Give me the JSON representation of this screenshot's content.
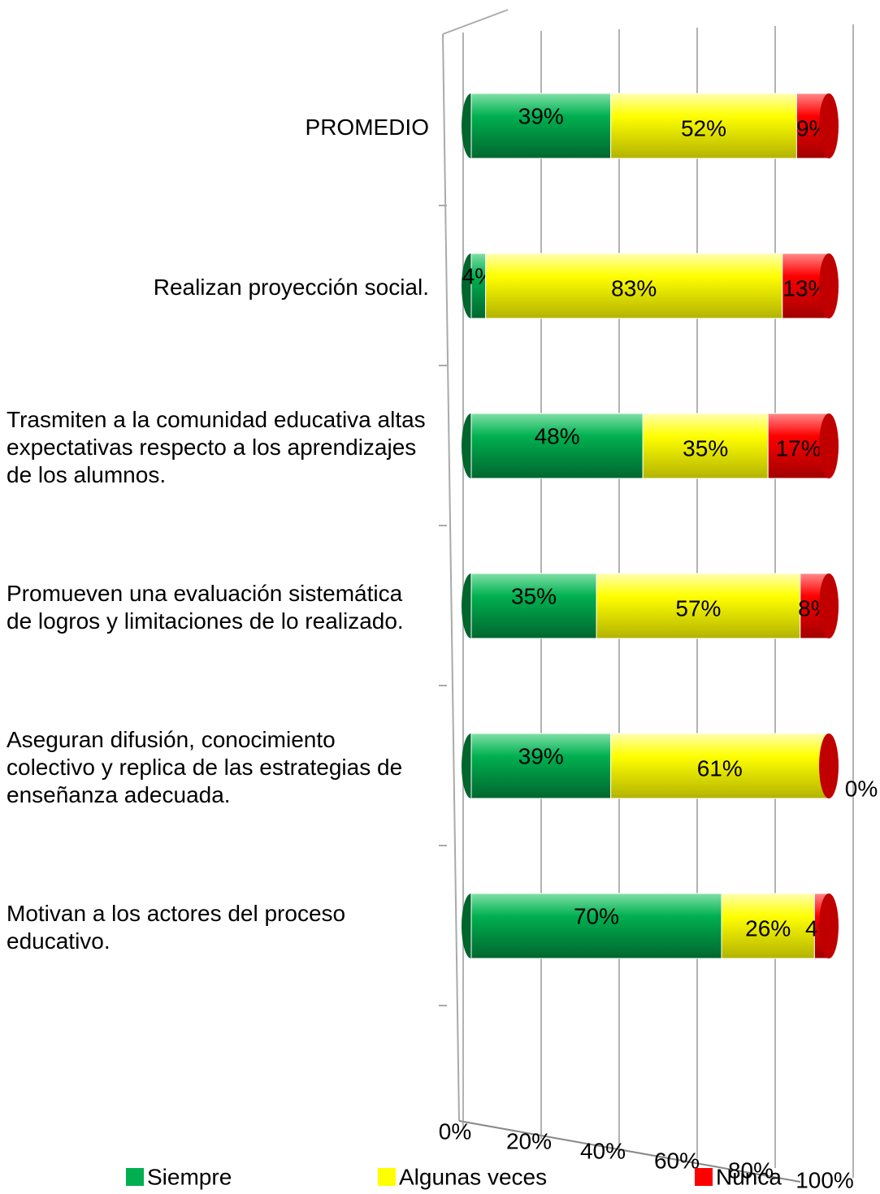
{
  "chart_data": {
    "type": "stacked_bar_horizontal",
    "categories": [
      "Motivan a los actores del proceso educativo.",
      "Aseguran difusión, conocimiento colectivo y replica de las estrategias de enseñanza adecuada.",
      "Promueven una evaluación sistemática de logros y limitaciones de lo realizado.",
      "Trasmiten a la comunidad educativa altas expectativas respecto a los aprendizajes de los alumnos.",
      "Realizan proyección social.",
      "PROMEDIO"
    ],
    "series": [
      {
        "name": "Siempre",
        "color": "#00b050",
        "values": [
          70,
          39,
          35,
          48,
          4,
          39
        ],
        "value_labels": [
          "70%",
          "39%",
          "35%",
          "48%",
          "4%",
          "39%"
        ]
      },
      {
        "name": "Algunas veces",
        "color": "#ffff00",
        "values": [
          26,
          61,
          57,
          35,
          83,
          52
        ],
        "value_labels": [
          "26%",
          "61%",
          "57%",
          "35%",
          "83%",
          "52%"
        ]
      },
      {
        "name": "Nunca",
        "color": "#ff0000",
        "values": [
          4,
          0,
          8,
          17,
          13,
          9
        ],
        "value_labels": [
          "4%",
          "0%",
          "8%",
          "17%",
          "13%",
          "9%"
        ]
      }
    ],
    "xlim": [
      0,
      100
    ],
    "xticks": [
      {
        "value": 0,
        "label": "0%"
      },
      {
        "value": 20,
        "label": "20%"
      },
      {
        "value": 40,
        "label": "40%"
      },
      {
        "value": 60,
        "label": "60%"
      },
      {
        "value": 80,
        "label": "80%"
      },
      {
        "value": 100,
        "label": "100%"
      }
    ],
    "grid": true,
    "legend": "bottom"
  }
}
